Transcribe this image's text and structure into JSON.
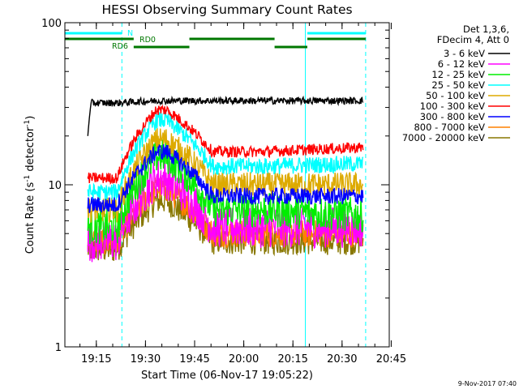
{
  "chart_data": {
    "type": "line",
    "title": "HESSI Observing Summary Count Rates",
    "xlabel": "Start Time (06-Nov-17 19:05:22)",
    "ylabel": "Count Rate (s⁻¹ detector⁻¹)",
    "ylabel_parts": {
      "base": "Count Rate (s",
      "sup1": "-1",
      "mid": " detector",
      "sup2": "-1",
      "end": ")"
    },
    "yscale": "log",
    "ylim": [
      1,
      100
    ],
    "xlim_minutes_after_start": [
      0,
      99
    ],
    "x_ticks": [
      {
        "minutes": 9.6,
        "label": "19:15"
      },
      {
        "minutes": 24.6,
        "label": "19:30"
      },
      {
        "minutes": 39.6,
        "label": "19:45"
      },
      {
        "minutes": 54.6,
        "label": "20:00"
      },
      {
        "minutes": 69.6,
        "label": "20:15"
      },
      {
        "minutes": 84.6,
        "label": "20:30"
      },
      {
        "minutes": 99.6,
        "label": "20:45"
      }
    ],
    "y_ticks": [
      {
        "value": 1,
        "label": "1"
      },
      {
        "value": 10,
        "label": "10"
      },
      {
        "value": 100,
        "label": "100"
      }
    ],
    "legend_header": [
      "Det 1,3,6,",
      "FDecim 4, Att 0"
    ],
    "legend_placement": "right",
    "series": [
      {
        "name": "3 - 6 keV",
        "color": "#000000",
        "pre": 32,
        "peak": 33,
        "decay": 33,
        "plateau": 33,
        "noise": 0.05
      },
      {
        "name": "6 - 12 keV",
        "color": "#ff00ff",
        "pre": 4.5,
        "peak": 11,
        "decay": 5.5,
        "plateau": 5.5,
        "noise": 0.3
      },
      {
        "name": "12 - 25 keV",
        "color": "#00ee00",
        "pre": 5.5,
        "peak": 15,
        "decay": 7,
        "plateau": 6.5,
        "noise": 0.25
      },
      {
        "name": "25 - 50 keV",
        "color": "#00ffff",
        "pre": 9,
        "peak": 25,
        "decay": 13,
        "plateau": 13.5,
        "noise": 0.12
      },
      {
        "name": "50 - 100 keV",
        "color": "#ddaa00",
        "pre": 7,
        "peak": 19,
        "decay": 10,
        "plateau": 10,
        "noise": 0.18
      },
      {
        "name": "100 - 300 keV",
        "color": "#ff0000",
        "pre": 11,
        "peak": 29,
        "decay": 16,
        "plateau": 17,
        "noise": 0.08
      },
      {
        "name": "300 - 800 keV",
        "color": "#0000ff",
        "pre": 7.5,
        "peak": 16,
        "decay": 8.5,
        "plateau": 8.5,
        "noise": 0.12
      },
      {
        "name": "800 - 7000 keV",
        "color": "#ff8000",
        "pre": 4.5,
        "peak": 9.5,
        "decay": 5,
        "plateau": 5,
        "noise": 0.2
      },
      {
        "name": "7000 - 20000 keV",
        "color": "#887700",
        "pre": 4,
        "peak": 8,
        "decay": 4.5,
        "plateau": 4.5,
        "noise": 0.2
      }
    ],
    "data_window_minutes": [
      7,
      91
    ],
    "vertical_markers": [
      {
        "minutes": 0,
        "style": "solid",
        "color": "#00ffff"
      },
      {
        "minutes": 17.4,
        "style": "dashed",
        "color": "#00ffff"
      },
      {
        "minutes": 73.4,
        "style": "solid",
        "color": "#00ffff"
      },
      {
        "minutes": 91.8,
        "style": "dashed",
        "color": "#00ffff"
      }
    ],
    "flag_bars": [
      {
        "label": "N",
        "color": "#00ffff",
        "row": 0,
        "segments": [
          [
            0,
            17.4
          ],
          [
            74,
            91.8
          ]
        ]
      },
      {
        "label": "RD0",
        "color": "#007700",
        "row": 1,
        "segments": [
          [
            0,
            21
          ],
          [
            38,
            64
          ],
          [
            74,
            91.8
          ]
        ]
      },
      {
        "label": "RD6",
        "color": "#007700",
        "row": 2,
        "segments": [
          [
            21,
            38
          ],
          [
            64,
            74
          ]
        ]
      }
    ],
    "timestamp": "9-Nov-2017 07:40"
  }
}
